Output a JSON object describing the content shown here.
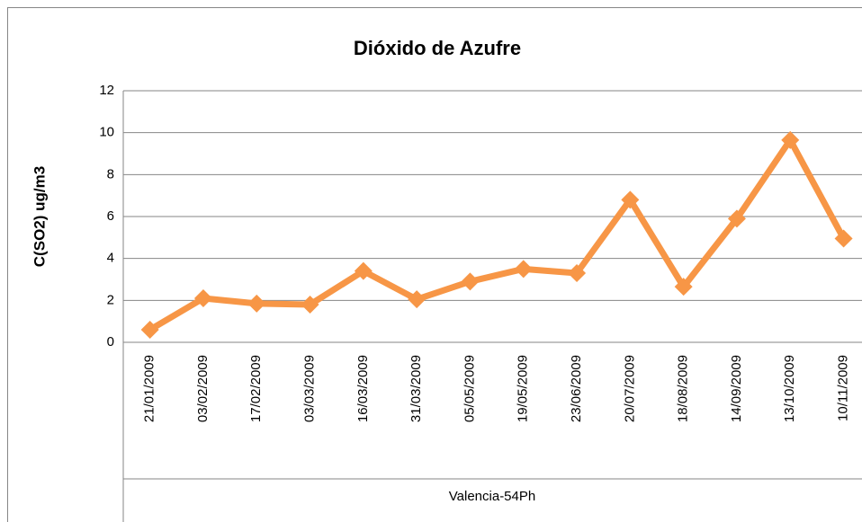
{
  "chart_data": {
    "type": "line",
    "title": "Dióxido de Azufre",
    "y_label": "C(SO2) ug/m3",
    "x_group_label": "Valencia-54Ph",
    "categories": [
      "21/01/2009",
      "03/02/2009",
      "17/02/2009",
      "03/03/2009",
      "16/03/2009",
      "31/03/2009",
      "05/05/2009",
      "19/05/2009",
      "23/06/2009",
      "20/07/2009",
      "18/08/2009",
      "14/09/2009",
      "13/10/2009",
      "10/11/2009"
    ],
    "values": [
      0.6,
      2.1,
      1.85,
      1.8,
      3.4,
      2.05,
      2.9,
      3.5,
      3.3,
      6.8,
      2.65,
      5.9,
      9.65,
      4.95
    ],
    "color": "#f79646",
    "ylim": [
      0,
      12
    ],
    "yticks": [
      0,
      2,
      4,
      6,
      8,
      10,
      12
    ],
    "grid": true
  }
}
